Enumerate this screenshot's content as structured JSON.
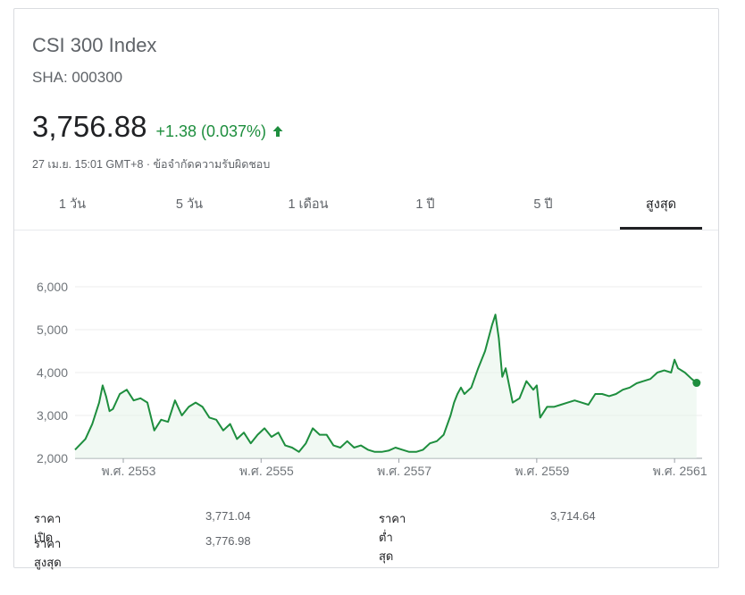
{
  "header": {
    "title": "CSI 300 Index",
    "ticker": "SHA: 000300",
    "price": "3,756.88",
    "change": "+1.38 (0.037%)",
    "meta": "27 เม.ย. 15:01 GMT+8 · ข้อจำกัดความรับผิดชอบ",
    "up_color": "#1e8e3e"
  },
  "tabs": [
    {
      "label": "1 วัน"
    },
    {
      "label": "5 วัน"
    },
    {
      "label": "1 เดือน"
    },
    {
      "label": "1 ปี"
    },
    {
      "label": "5 ปี"
    },
    {
      "label": "สูงสุด",
      "active": true
    }
  ],
  "stats": {
    "open_label": "ราคาเปิด",
    "open_value": "3,771.04",
    "high_label": "ราคาสูงสุด",
    "high_value": "3,776.98",
    "low_label": "ราคาต่ำสุด",
    "low_value": "3,714.64"
  },
  "chart_data": {
    "type": "line",
    "ylim": [
      2000,
      6000
    ],
    "yticks": [
      2000,
      3000,
      4000,
      5000,
      6000
    ],
    "ytick_labels": [
      "2,000",
      "3,000",
      "4,000",
      "5,000",
      "6,000"
    ],
    "xlim": [
      2009.3,
      2018.4
    ],
    "xticks": [
      2010,
      2012,
      2014,
      2016,
      2018
    ],
    "xtick_labels": [
      "พ.ศ. 2553",
      "พ.ศ. 2555",
      "พ.ศ. 2557",
      "พ.ศ. 2559",
      "พ.ศ. 2561"
    ],
    "grid": true,
    "line_color": "#1e8e3e",
    "fill_color": "#e6f4ea",
    "series": [
      {
        "x": [
          2009.3,
          2009.45,
          2009.55,
          2009.65,
          2009.7,
          2009.75,
          2009.8,
          2009.85,
          2009.95,
          2010.05,
          2010.15,
          2010.25,
          2010.35,
          2010.45,
          2010.55,
          2010.65,
          2010.75,
          2010.85,
          2010.95,
          2011.05,
          2011.15,
          2011.25,
          2011.35,
          2011.45,
          2011.55,
          2011.65,
          2011.75,
          2011.85,
          2011.95,
          2012.05,
          2012.15,
          2012.25,
          2012.35,
          2012.45,
          2012.55,
          2012.65,
          2012.75,
          2012.85,
          2012.95,
          2013.05,
          2013.15,
          2013.25,
          2013.35,
          2013.45,
          2013.55,
          2013.65,
          2013.75,
          2013.85,
          2013.95,
          2014.05,
          2014.15,
          2014.25,
          2014.35,
          2014.45,
          2014.55,
          2014.65,
          2014.75,
          2014.8,
          2014.85,
          2014.9,
          2014.95,
          2015.05,
          2015.15,
          2015.25,
          2015.35,
          2015.4,
          2015.45,
          2015.5,
          2015.55,
          2015.6,
          2015.65,
          2015.75,
          2015.85,
          2015.95,
          2016.0,
          2016.05,
          2016.15,
          2016.25,
          2016.35,
          2016.45,
          2016.55,
          2016.65,
          2016.75,
          2016.85,
          2016.95,
          2017.05,
          2017.15,
          2017.25,
          2017.35,
          2017.45,
          2017.55,
          2017.65,
          2017.75,
          2017.85,
          2017.95,
          2018.0,
          2018.05,
          2018.15,
          2018.25,
          2018.32
        ],
        "y": [
          2200,
          2450,
          2800,
          3300,
          3700,
          3450,
          3100,
          3150,
          3500,
          3600,
          3350,
          3400,
          3300,
          2650,
          2900,
          2850,
          3350,
          3000,
          3200,
          3300,
          3200,
          2950,
          2900,
          2650,
          2800,
          2450,
          2600,
          2350,
          2550,
          2700,
          2500,
          2600,
          2300,
          2250,
          2150,
          2350,
          2700,
          2550,
          2550,
          2300,
          2250,
          2400,
          2250,
          2300,
          2200,
          2150,
          2150,
          2180,
          2250,
          2200,
          2150,
          2150,
          2200,
          2350,
          2400,
          2550,
          3000,
          3300,
          3500,
          3650,
          3500,
          3650,
          4100,
          4500,
          5100,
          5350,
          4800,
          3900,
          4100,
          3700,
          3300,
          3400,
          3800,
          3600,
          3700,
          2950,
          3200,
          3200,
          3250,
          3300,
          3350,
          3300,
          3250,
          3500,
          3500,
          3450,
          3500,
          3600,
          3650,
          3750,
          3800,
          3850,
          4000,
          4050,
          4000,
          4300,
          4100,
          4000,
          3850,
          3760
        ]
      }
    ]
  }
}
